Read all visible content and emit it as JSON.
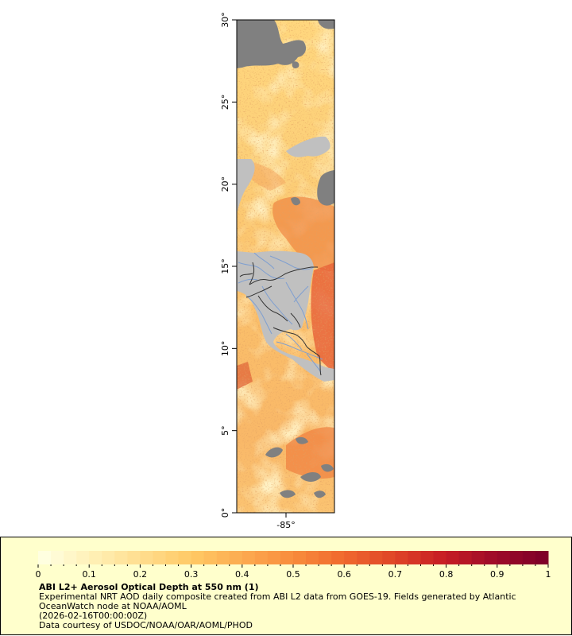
{
  "map": {
    "lat_labels": [
      "0°",
      "5°",
      "10°",
      "15°",
      "20°",
      "25°",
      "30°"
    ],
    "lat_values": [
      0,
      5,
      10,
      15,
      20,
      25,
      30
    ],
    "lon_labels": [
      "-85°"
    ],
    "colors": {
      "land": "#c0c0c0",
      "nodata": "#808080",
      "river": "#7f9fd0",
      "border": "#333333",
      "frame": "#000000"
    }
  },
  "legend": {
    "ticks": [
      "0",
      "0.1",
      "0.2",
      "0.3",
      "0.4",
      "0.5",
      "0.6",
      "0.7",
      "0.8",
      "0.9",
      "1"
    ],
    "range": [
      0,
      1
    ],
    "colormap": [
      "#ffffe0",
      "#fff0b4",
      "#ffdc8c",
      "#ffc864",
      "#fcaa50",
      "#f88c3c",
      "#f06a2e",
      "#e04628",
      "#c81e24",
      "#a00c28",
      "#800028"
    ],
    "title": "ABI L2+ Aerosol Optical Depth at 550 nm (1)",
    "description": "Experimental NRT AOD daily composite created from ABI L2 data from GOES-19. Fields generated by Atlantic OceanWatch node at NOAA/AOML",
    "time": "(2026-02-16T00:00:00Z)",
    "credit": "Data courtesy of USDOC/NOAA/OAR/AOML/PHOD"
  }
}
